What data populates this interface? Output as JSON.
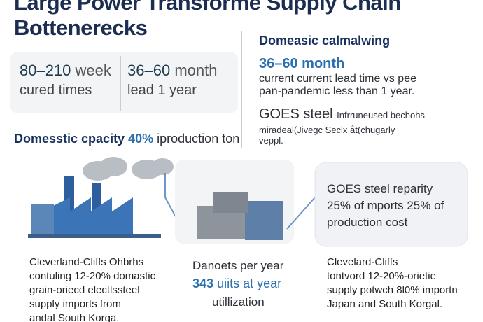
{
  "header": {
    "title_line1": "Large Power Transforme Supply Chain",
    "title_line2": "Bottenerecks"
  },
  "stats": {
    "left": {
      "number": "80–210",
      "unit": "week",
      "line2": "cured times"
    },
    "right": {
      "number": "36–60",
      "unit": "month",
      "line2": "lead 1 year"
    },
    "capacity": {
      "before": "Domesstic cpacity",
      "highlight": "40%",
      "after": "iproduction ton"
    }
  },
  "side": {
    "heading": "Domeasic calmalwing",
    "highlight": "36–60 month",
    "lines": [
      "current current lead time vs pee",
      "pan-pandemic less than 1 year."
    ],
    "goes_label": "GOES steel",
    "goes_note": "Infrruneused bechohs",
    "goes_lines": [
      "miradeal(Jivegc Seclx ắt(chugarly",
      "veppl."
    ]
  },
  "panels": [
    {
      "caption": [
        "Cleverland-Cliffs Ohbrhs",
        "contuling 12-20% domastic",
        "grain-oriecd electlssteel",
        "supply imports from",
        "andal South Korga."
      ]
    },
    {
      "line1": "Danoets per year",
      "number": "343",
      "line2": "uiits at year",
      "line3": "utillization"
    },
    {
      "bubble": [
        "GOES steel reparity",
        "25% of mports 25% of",
        "production cost"
      ],
      "caption": [
        "Clevelard-Cliffs",
        "tontvord 12-20%-orietie",
        "supply potwch 8l0% importn",
        "Japan and South Korgal."
      ]
    }
  ]
}
